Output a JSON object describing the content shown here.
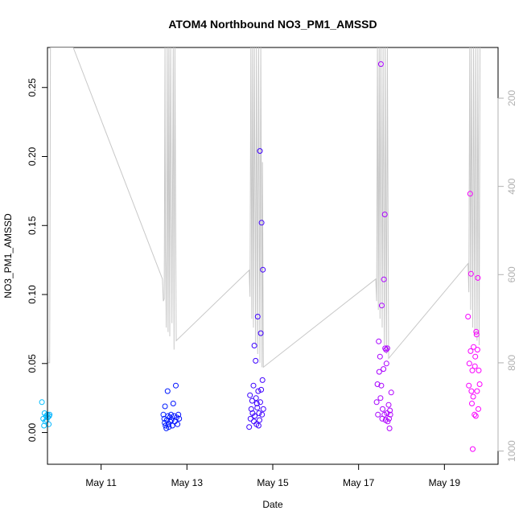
{
  "chart_data": {
    "type": "scatter",
    "title": "ATOM4 Northbound NO3_PM1_AMSSD",
    "xlabel": "Date",
    "ylabel": "NO3_PM1_AMSSD",
    "x_ticks": [
      "May 11",
      "May 13",
      "May 15",
      "May 17",
      "May 19"
    ],
    "x_tick_values": [
      11,
      13,
      15,
      17,
      19
    ],
    "xlim": [
      9.75,
      20.25
    ],
    "ylim": [
      -0.023,
      0.279
    ],
    "y_ticks": [
      0.0,
      0.05,
      0.1,
      0.15,
      0.2,
      0.25
    ],
    "y_tick_labels": [
      "0.00",
      "0.05",
      "0.10",
      "0.15",
      "0.20",
      "0.25"
    ],
    "y2_label": "",
    "y2_ticks": [
      200,
      400,
      600,
      800,
      1000
    ],
    "y2_lim": [
      1030,
      85
    ],
    "y2_scale": "reversed",
    "grid": false,
    "series": [
      {
        "marker": "open-circle",
        "color_gradient": [
          "#00bfff",
          "#0000ff",
          "#8000ff",
          "#ff00ff"
        ],
        "points": [
          [
            9.62,
            0.022
          ],
          [
            9.65,
            0.01
          ],
          [
            9.67,
            0.005
          ],
          [
            9.68,
            0.014
          ],
          [
            9.7,
            0.008
          ],
          [
            9.72,
            0.012
          ],
          [
            9.73,
            0.009
          ],
          [
            9.75,
            0.013
          ],
          [
            9.76,
            0.011
          ],
          [
            9.78,
            0.006
          ],
          [
            9.79,
            0.012
          ],
          [
            9.8,
            0.013
          ],
          [
            12.45,
            0.013
          ],
          [
            12.47,
            0.01
          ],
          [
            12.48,
            0.007
          ],
          [
            12.49,
            0.019
          ],
          [
            12.5,
            0.005
          ],
          [
            12.52,
            0.003
          ],
          [
            12.53,
            0.009
          ],
          [
            12.55,
            0.03
          ],
          [
            12.56,
            0.012
          ],
          [
            12.57,
            0.006
          ],
          [
            12.58,
            0.004
          ],
          [
            12.6,
            0.011
          ],
          [
            12.61,
            0.008
          ],
          [
            12.63,
            0.013
          ],
          [
            12.64,
            0.009
          ],
          [
            12.66,
            0.005
          ],
          [
            12.68,
            0.021
          ],
          [
            12.7,
            0.012
          ],
          [
            12.72,
            0.008
          ],
          [
            12.74,
            0.034
          ],
          [
            12.76,
            0.011
          ],
          [
            12.78,
            0.006
          ],
          [
            12.8,
            0.013
          ],
          [
            12.82,
            0.01
          ],
          [
            14.45,
            0.004
          ],
          [
            14.47,
            0.027
          ],
          [
            14.48,
            0.01
          ],
          [
            14.5,
            0.017
          ],
          [
            14.52,
            0.023
          ],
          [
            14.53,
            0.014
          ],
          [
            14.55,
            0.034
          ],
          [
            14.56,
            0.008
          ],
          [
            14.57,
            0.063
          ],
          [
            14.58,
            0.012
          ],
          [
            14.6,
            0.052
          ],
          [
            14.61,
            0.025
          ],
          [
            14.62,
            0.006
          ],
          [
            14.63,
            0.021
          ],
          [
            14.64,
            0.018
          ],
          [
            14.65,
            0.084
          ],
          [
            14.66,
            0.03
          ],
          [
            14.67,
            0.005
          ],
          [
            14.68,
            0.014
          ],
          [
            14.69,
            0.009
          ],
          [
            14.7,
            0.204
          ],
          [
            14.71,
            0.022
          ],
          [
            14.72,
            0.072
          ],
          [
            14.73,
            0.031
          ],
          [
            14.74,
            0.152
          ],
          [
            14.75,
            0.013
          ],
          [
            14.76,
            0.038
          ],
          [
            14.77,
            0.118
          ],
          [
            14.78,
            0.017
          ],
          [
            17.42,
            0.022
          ],
          [
            17.44,
            0.035
          ],
          [
            17.45,
            0.013
          ],
          [
            17.47,
            0.066
          ],
          [
            17.48,
            0.044
          ],
          [
            17.5,
            0.055
          ],
          [
            17.51,
            0.025
          ],
          [
            17.52,
            0.267
          ],
          [
            17.53,
            0.034
          ],
          [
            17.54,
            0.092
          ],
          [
            17.55,
            0.01
          ],
          [
            17.56,
            0.017
          ],
          [
            17.58,
            0.046
          ],
          [
            17.59,
            0.111
          ],
          [
            17.6,
            0.013
          ],
          [
            17.61,
            0.158
          ],
          [
            17.62,
            0.061
          ],
          [
            17.63,
            0.009
          ],
          [
            17.64,
            0.06
          ],
          [
            17.65,
            0.05
          ],
          [
            17.66,
            0.014
          ],
          [
            17.67,
            0.061
          ],
          [
            17.68,
            0.008
          ],
          [
            17.7,
            0.02
          ],
          [
            17.71,
            0.01
          ],
          [
            17.72,
            0.003
          ],
          [
            17.73,
            0.016
          ],
          [
            17.74,
            0.013
          ],
          [
            17.76,
            0.029
          ],
          [
            19.55,
            0.084
          ],
          [
            19.57,
            0.034
          ],
          [
            19.58,
            0.05
          ],
          [
            19.6,
            0.173
          ],
          [
            19.61,
            0.059
          ],
          [
            19.62,
            0.115
          ],
          [
            19.63,
            0.03
          ],
          [
            19.64,
            0.021
          ],
          [
            19.65,
            0.045
          ],
          [
            19.66,
            -0.012
          ],
          [
            19.67,
            0.026
          ],
          [
            19.68,
            0.062
          ],
          [
            19.7,
            0.013
          ],
          [
            19.71,
            0.048
          ],
          [
            19.72,
            0.055
          ],
          [
            19.73,
            0.012
          ],
          [
            19.74,
            0.073
          ],
          [
            19.75,
            0.071
          ],
          [
            19.76,
            0.03
          ],
          [
            19.77,
            0.06
          ],
          [
            19.78,
            0.112
          ],
          [
            19.79,
            0.017
          ],
          [
            19.8,
            0.045
          ],
          [
            19.82,
            0.035
          ]
        ]
      },
      {
        "type": "line",
        "axis": "right",
        "color": "#c8c8c8",
        "points": [
          [
            9.62,
            390
          ],
          [
            9.67,
            700
          ],
          [
            9.7,
            200
          ],
          [
            9.73,
            750
          ],
          [
            9.76,
            800
          ],
          [
            9.8,
            800
          ],
          [
            9.82,
            85
          ],
          [
            9.85,
            85
          ],
          [
            10.35,
            85
          ],
          [
            12.43,
            610
          ],
          [
            12.45,
            660
          ],
          [
            12.47,
            655
          ],
          [
            12.49,
            85
          ],
          [
            12.5,
            545
          ],
          [
            12.52,
            720
          ],
          [
            12.54,
            85
          ],
          [
            12.56,
            730
          ],
          [
            12.58,
            85
          ],
          [
            12.6,
            740
          ],
          [
            12.62,
            85
          ],
          [
            12.65,
            710
          ],
          [
            12.68,
            85
          ],
          [
            12.7,
            770
          ],
          [
            12.72,
            85
          ],
          [
            12.75,
            750
          ],
          [
            14.45,
            590
          ],
          [
            14.47,
            650
          ],
          [
            14.49,
            85
          ],
          [
            14.51,
            700
          ],
          [
            14.53,
            85
          ],
          [
            14.55,
            720
          ],
          [
            14.57,
            85
          ],
          [
            14.6,
            760
          ],
          [
            14.62,
            85
          ],
          [
            14.65,
            780
          ],
          [
            14.67,
            85
          ],
          [
            14.7,
            800
          ],
          [
            14.72,
            85
          ],
          [
            14.75,
            810
          ],
          [
            14.76,
            345
          ],
          [
            14.78,
            810
          ],
          [
            17.4,
            610
          ],
          [
            17.42,
            660
          ],
          [
            17.44,
            85
          ],
          [
            17.46,
            680
          ],
          [
            17.48,
            85
          ],
          [
            17.5,
            700
          ],
          [
            17.52,
            85
          ],
          [
            17.55,
            720
          ],
          [
            17.57,
            85
          ],
          [
            17.6,
            760
          ],
          [
            17.62,
            85
          ],
          [
            17.65,
            780
          ],
          [
            17.67,
            85
          ],
          [
            17.7,
            790
          ],
          [
            19.55,
            575
          ],
          [
            19.57,
            640
          ],
          [
            19.59,
            85
          ],
          [
            19.61,
            680
          ],
          [
            19.63,
            85
          ],
          [
            19.66,
            720
          ],
          [
            19.68,
            85
          ],
          [
            19.71,
            740
          ],
          [
            19.73,
            85
          ],
          [
            19.76,
            750
          ],
          [
            19.78,
            85
          ],
          [
            19.81,
            760
          ],
          [
            19.83,
            85
          ]
        ]
      }
    ]
  }
}
